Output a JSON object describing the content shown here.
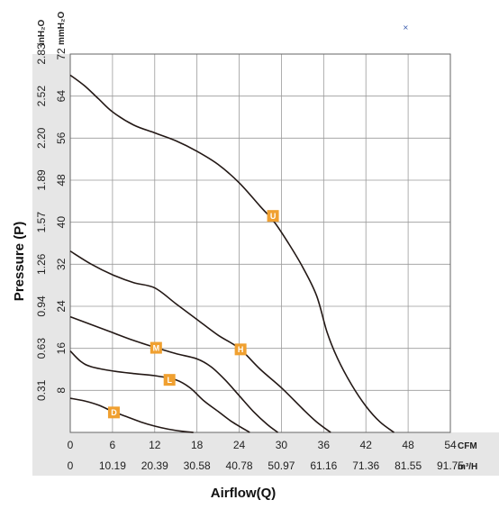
{
  "chart_data": {
    "type": "line",
    "xlabel": "Airflow(Q)",
    "ylabel": "Pressure (P)",
    "x_unit_primary": "CFM",
    "x_unit_secondary": "m³/H",
    "y_unit_primary": "mmH₂O",
    "y_unit_secondary": "inH₂O",
    "x_ticks_cfm": [
      "0",
      "6",
      "12",
      "18",
      "24",
      "30",
      "36",
      "42",
      "48",
      "54"
    ],
    "x_ticks_m3h": [
      "0",
      "10.19",
      "20.39",
      "30.58",
      "40.78",
      "50.97",
      "61.16",
      "71.36",
      "81.55",
      "91.75"
    ],
    "y_ticks_mmh2o": [
      "8",
      "16",
      "24",
      "32",
      "40",
      "48",
      "56",
      "64",
      "72"
    ],
    "y_ticks_inh2o": [
      "0.31",
      "0.63",
      "0.94",
      "1.26",
      "1.57",
      "1.89",
      "2.20",
      "2.52",
      "2.83"
    ],
    "xlim": [
      0,
      54
    ],
    "ylim": [
      0,
      72
    ],
    "grid": true,
    "series": [
      {
        "name": "U",
        "label_at": [
          28.8,
          41.2
        ],
        "points": [
          [
            0,
            68
          ],
          [
            2,
            66
          ],
          [
            4,
            63.5
          ],
          [
            6,
            61
          ],
          [
            9,
            58.5
          ],
          [
            12,
            57
          ],
          [
            15,
            55.5
          ],
          [
            18,
            53.5
          ],
          [
            21,
            51
          ],
          [
            24,
            47.5
          ],
          [
            27,
            43
          ],
          [
            29,
            40
          ],
          [
            31,
            36
          ],
          [
            33,
            31.5
          ],
          [
            35,
            26
          ],
          [
            36.5,
            19
          ],
          [
            38,
            14
          ],
          [
            40,
            9
          ],
          [
            42,
            5
          ],
          [
            44,
            2
          ],
          [
            46,
            0
          ]
        ]
      },
      {
        "name": "H",
        "label_at": [
          24.2,
          15.8
        ],
        "points": [
          [
            0,
            34.5
          ],
          [
            3,
            32
          ],
          [
            6,
            30
          ],
          [
            9,
            28.5
          ],
          [
            12,
            27.5
          ],
          [
            15,
            24.5
          ],
          [
            18,
            21.5
          ],
          [
            21,
            18.5
          ],
          [
            24,
            16
          ],
          [
            27,
            12
          ],
          [
            30,
            8.5
          ],
          [
            33,
            4.5
          ],
          [
            35,
            2
          ],
          [
            37,
            0
          ]
        ]
      },
      {
        "name": "M",
        "label_at": [
          12.2,
          16.1
        ],
        "points": [
          [
            0,
            22
          ],
          [
            3,
            20.5
          ],
          [
            6,
            19
          ],
          [
            9,
            17.5
          ],
          [
            12,
            16.2
          ],
          [
            15,
            15
          ],
          [
            18,
            14
          ],
          [
            20,
            12.5
          ],
          [
            22,
            10
          ],
          [
            24,
            7
          ],
          [
            26,
            4
          ],
          [
            28,
            1.5
          ],
          [
            29.5,
            0
          ]
        ]
      },
      {
        "name": "L",
        "label_at": [
          14.1,
          10.0
        ],
        "points": [
          [
            0,
            15.5
          ],
          [
            1.5,
            13.5
          ],
          [
            3,
            12.5
          ],
          [
            6,
            11.7
          ],
          [
            9,
            11.2
          ],
          [
            12,
            10.8
          ],
          [
            15,
            10.0
          ],
          [
            17,
            8.5
          ],
          [
            19,
            6.0
          ],
          [
            21,
            4.0
          ],
          [
            23,
            2.0
          ],
          [
            25.5,
            0
          ]
        ]
      },
      {
        "name": "D",
        "label_at": [
          6.2,
          3.8
        ],
        "points": [
          [
            0,
            6.5
          ],
          [
            2,
            6.0
          ],
          [
            4,
            5.2
          ],
          [
            6,
            4.0
          ],
          [
            8,
            3.0
          ],
          [
            10,
            2.0
          ],
          [
            12,
            1.2
          ],
          [
            14,
            0.6
          ],
          [
            16,
            0.2
          ],
          [
            17.5,
            0
          ]
        ]
      }
    ],
    "marker_color": "#f0a030"
  }
}
